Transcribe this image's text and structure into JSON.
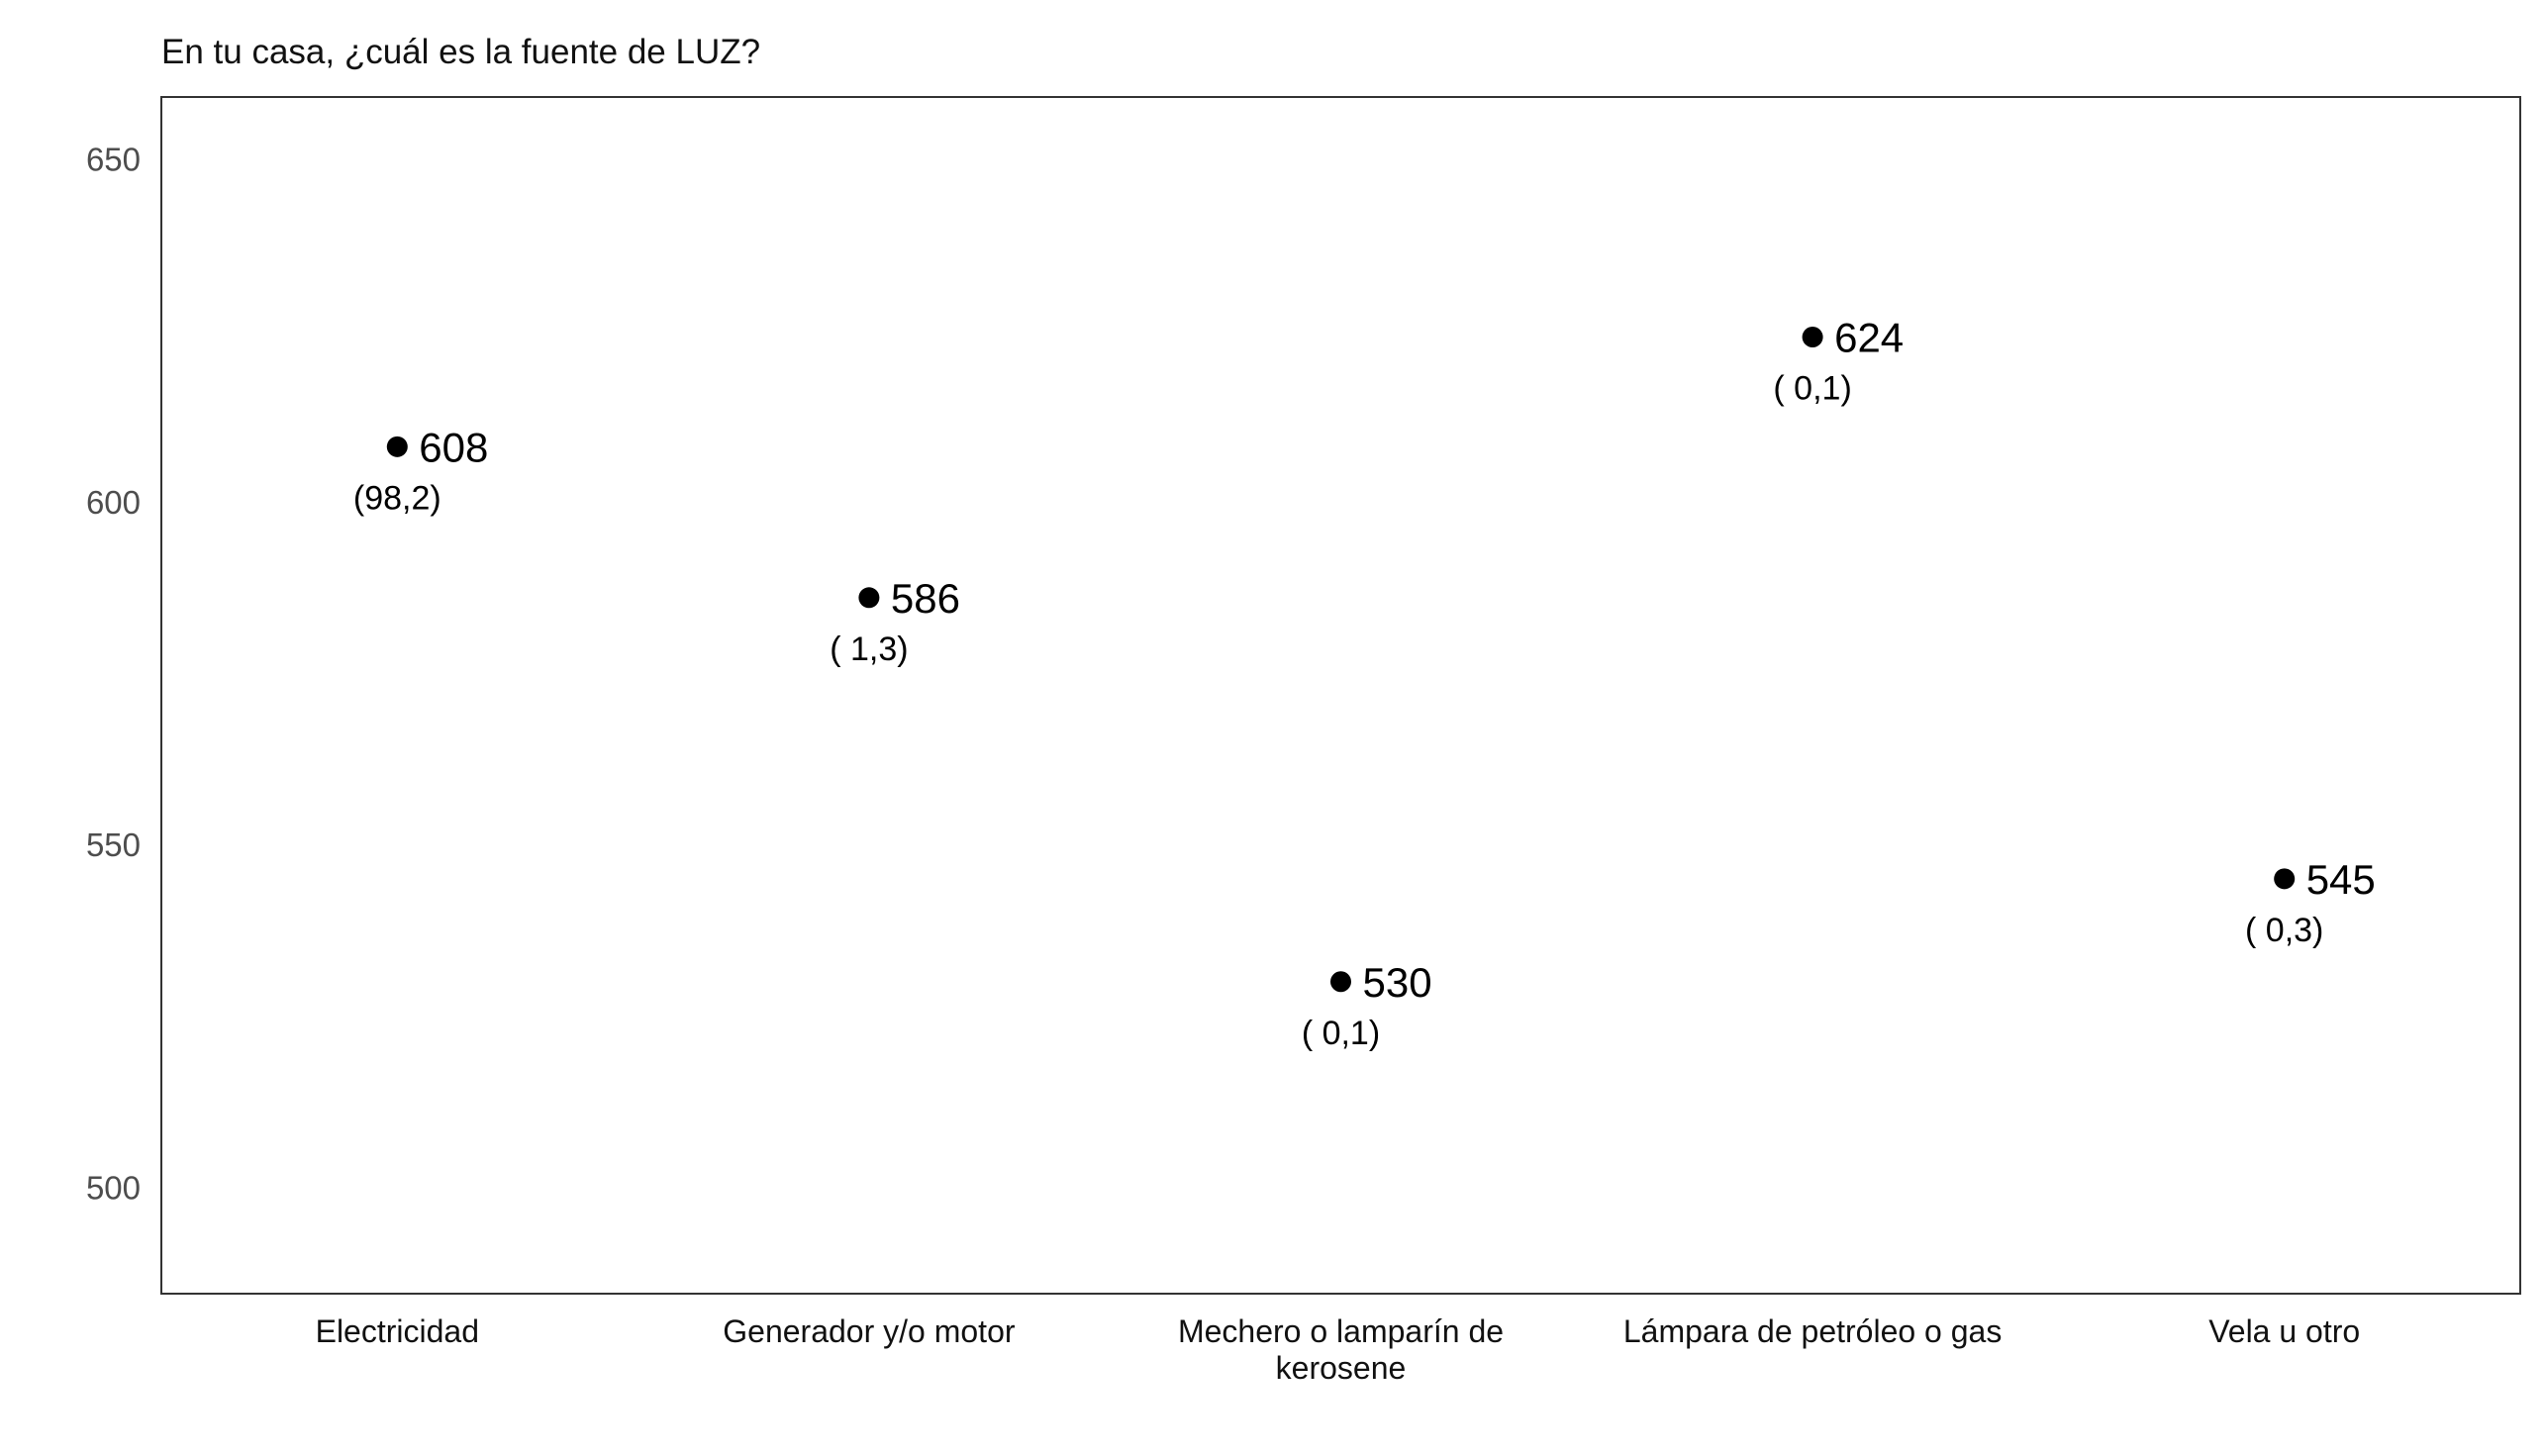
{
  "chart_data": {
    "type": "scatter",
    "title": "En tu casa, ¿cuál es la fuente de LUZ?",
    "xlabel": "",
    "ylabel": "",
    "ylim": [
      484.5,
      659
    ],
    "yticks": [
      "500",
      "550",
      "600",
      "650"
    ],
    "grid": false,
    "categories": [
      "Electricidad",
      "Generador y/o motor",
      "Mechero o lamparín de kerosene",
      "Lámpara de petróleo o gas",
      "Vela u otro"
    ],
    "category_lines": [
      [
        "Electricidad"
      ],
      [
        "Generador y/o motor"
      ],
      [
        "Mechero o lamparín de",
        "kerosene"
      ],
      [
        "Lámpara de petróleo o gas"
      ],
      [
        "Vela u otro"
      ]
    ],
    "values": [
      608,
      586,
      530,
      624,
      545
    ],
    "value_labels": [
      "608",
      "586",
      "530",
      "624",
      "545"
    ],
    "percent_labels": [
      "(98,2)",
      "( 1,3)",
      "( 0,1)",
      "( 0,1)",
      "( 0,3)"
    ],
    "point_color": "#000000"
  }
}
